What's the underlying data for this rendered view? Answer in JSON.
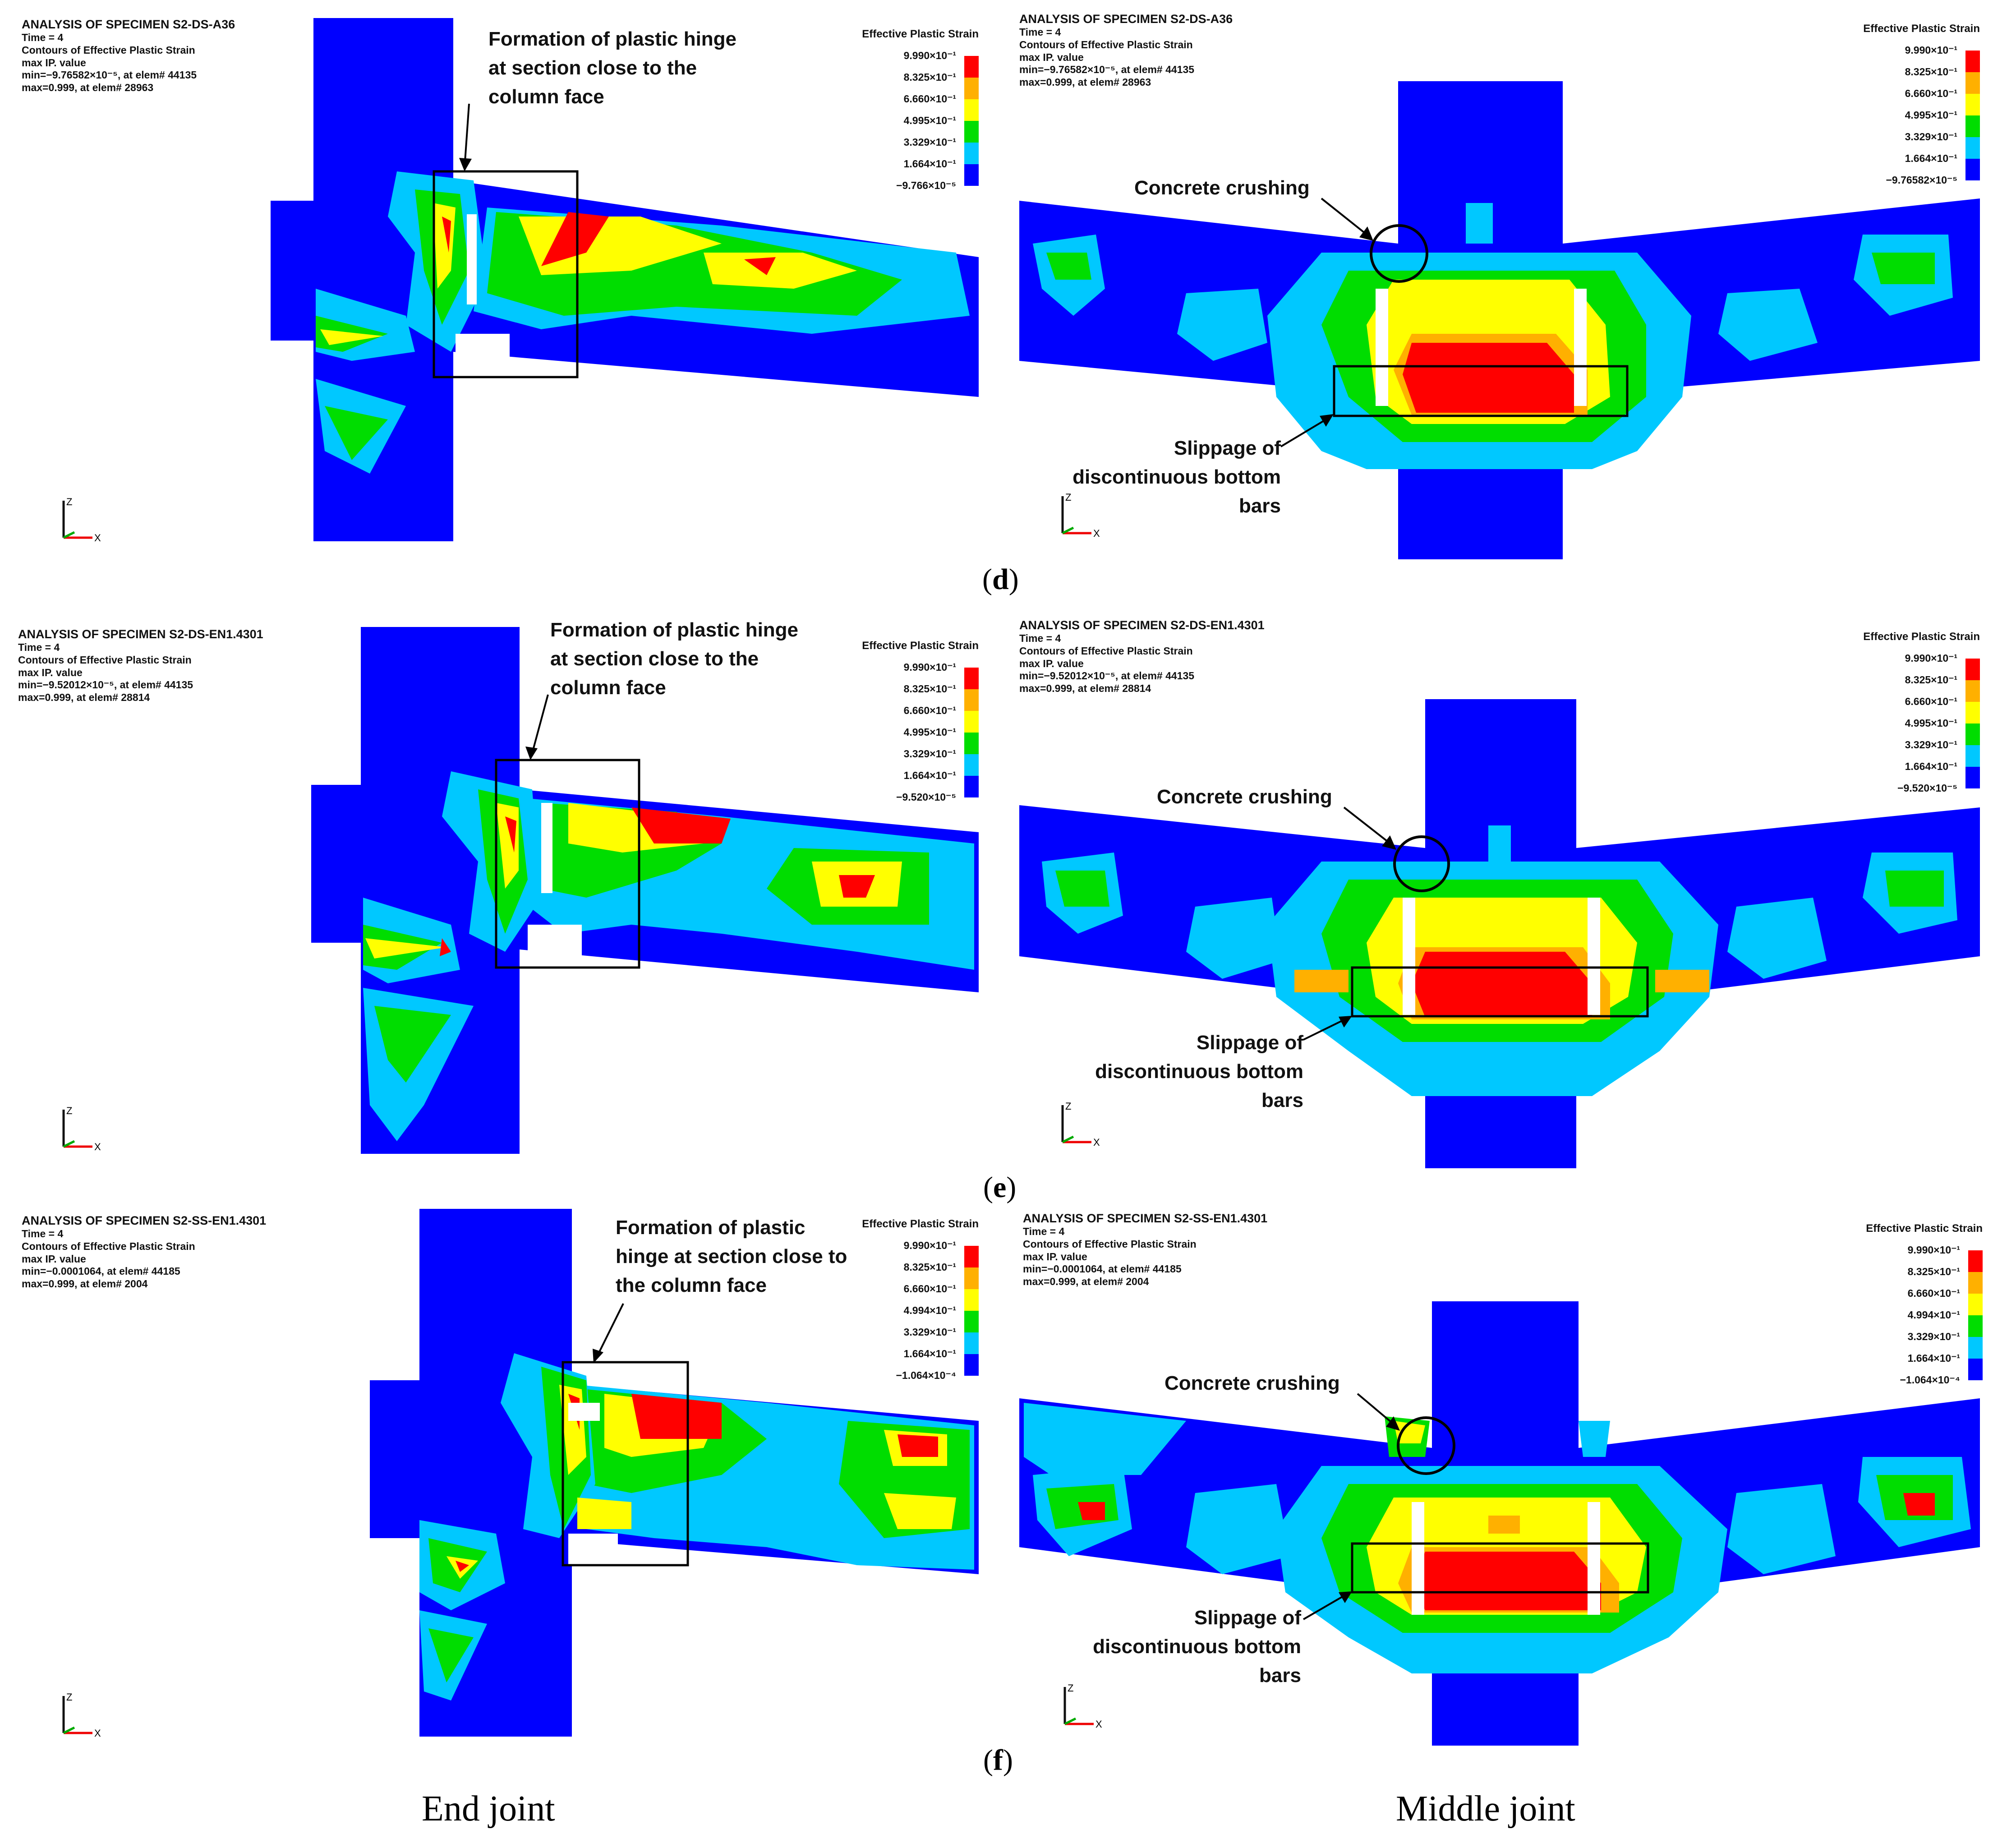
{
  "legend_colors": [
    "#ff0000",
    "#ffb000",
    "#ffff00",
    "#00dd00",
    "#00c8ff",
    "#0000ff"
  ],
  "panels": [
    {
      "id": "d-end",
      "header": {
        "title": "ANALYSIS OF SPECIMEN S2-DS-A36",
        "time": "Time =          4",
        "contours": "Contours of Effective Plastic Strain",
        "max_ip": "max IP. value",
        "min": "min=−9.76582×10⁻⁵, at elem# 44135",
        "max": "max=0.999, at elem# 28963"
      },
      "legend": {
        "title": "Effective Plastic Strain",
        "values": [
          "9.990×10⁻¹",
          "8.325×10⁻¹",
          "6.660×10⁻¹",
          "4.995×10⁻¹",
          "3.329×10⁻¹",
          "1.664×10⁻¹",
          "−9.766×10⁻⁵"
        ]
      },
      "annotations": [
        {
          "lines": [
            "Formation of plastic hinge",
            "at section close to the",
            "column face"
          ]
        }
      ],
      "axes": {
        "z": "Z",
        "x": "X"
      }
    },
    {
      "id": "d-middle",
      "header": {
        "title": "ANALYSIS OF SPECIMEN S2-DS-A36",
        "time": "Time =          4",
        "contours": "Contours of Effective Plastic Strain",
        "max_ip": "max IP. value",
        "min": "min=−9.76582×10⁻⁵, at elem# 44135",
        "max": "max=0.999, at elem# 28963"
      },
      "legend": {
        "title": "Effective Plastic Strain",
        "values": [
          "9.990×10⁻¹",
          "8.325×10⁻¹",
          "6.660×10⁻¹",
          "4.995×10⁻¹",
          "3.329×10⁻¹",
          "1.664×10⁻¹",
          "−9.76582×10⁻⁵"
        ]
      },
      "annotations": [
        {
          "lines": [
            "Concrete crushing"
          ]
        },
        {
          "lines": [
            "Slippage of",
            "discontinuous bottom",
            "bars"
          ]
        }
      ],
      "axes": {
        "z": "Z",
        "x": "X"
      }
    },
    {
      "id": "e-end",
      "header": {
        "title": "ANALYSIS OF SPECIMEN S2-DS-EN1.4301",
        "time": "Time =          4",
        "contours": "Contours of Effective Plastic Strain",
        "max_ip": "max IP. value",
        "min": "min=−9.52012×10⁻⁵, at elem# 44135",
        "max": "max=0.999, at elem# 28814"
      },
      "legend": {
        "title": "Effective Plastic Strain",
        "values": [
          "9.990×10⁻¹",
          "8.325×10⁻¹",
          "6.660×10⁻¹",
          "4.995×10⁻¹",
          "3.329×10⁻¹",
          "1.664×10⁻¹",
          "−9.520×10⁻⁵"
        ]
      },
      "annotations": [
        {
          "lines": [
            "Formation of plastic hinge",
            "at section close to the",
            "column face"
          ]
        }
      ],
      "axes": {
        "z": "Z",
        "x": "X"
      }
    },
    {
      "id": "e-middle",
      "header": {
        "title": "ANALYSIS OF SPECIMEN S2-DS-EN1.4301",
        "time": "Time =          4",
        "contours": "Contours of Effective Plastic Strain",
        "max_ip": "max IP. value",
        "min": "min=−9.52012×10⁻⁵, at elem# 44135",
        "max": "max=0.999, at elem# 28814"
      },
      "legend": {
        "title": "Effective Plastic Strain",
        "values": [
          "9.990×10⁻¹",
          "8.325×10⁻¹",
          "6.660×10⁻¹",
          "4.995×10⁻¹",
          "3.329×10⁻¹",
          "1.664×10⁻¹",
          "−9.520×10⁻⁵"
        ]
      },
      "annotations": [
        {
          "lines": [
            "Concrete crushing"
          ]
        },
        {
          "lines": [
            "Slippage of",
            "discontinuous bottom",
            "bars"
          ]
        }
      ],
      "axes": {
        "z": "Z",
        "x": "X"
      }
    },
    {
      "id": "f-end",
      "header": {
        "title": "ANALYSIS OF SPECIMEN S2-SS-EN1.4301",
        "time": "Time =          4",
        "contours": "Contours of Effective Plastic Strain",
        "max_ip": "max IP. value",
        "min": "min=−0.0001064, at elem# 44185",
        "max": "max=0.999, at elem# 2004"
      },
      "legend": {
        "title": "Effective Plastic Strain",
        "values": [
          "9.990×10⁻¹",
          "8.325×10⁻¹",
          "6.660×10⁻¹",
          "4.994×10⁻¹",
          "3.329×10⁻¹",
          "1.664×10⁻¹",
          "−1.064×10⁻⁴"
        ]
      },
      "annotations": [
        {
          "lines": [
            "Formation of plastic",
            "hinge at section close to",
            "the  column face"
          ]
        }
      ],
      "axes": {
        "z": "Z",
        "x": "X"
      }
    },
    {
      "id": "f-middle",
      "header": {
        "title": "ANALYSIS OF SPECIMEN S2-SS-EN1.4301",
        "time": "Time =          4",
        "contours": "Contours of Effective Plastic Strain",
        "max_ip": "max IP. value",
        "min": "min=−0.0001064, at elem# 44185",
        "max": "max=0.999, at elem# 2004"
      },
      "legend": {
        "title": "Effective Plastic Strain",
        "values": [
          "9.990×10⁻¹",
          "8.325×10⁻¹",
          "6.660×10⁻¹",
          "4.994×10⁻¹",
          "3.329×10⁻¹",
          "1.664×10⁻¹",
          "−1.064×10⁻⁴"
        ]
      },
      "annotations": [
        {
          "lines": [
            "Concrete crushing"
          ]
        },
        {
          "lines": [
            "Slippage of",
            "discontinuous bottom",
            "bars"
          ]
        }
      ],
      "axes": {
        "z": "Z",
        "x": "X"
      }
    }
  ],
  "captions": {
    "d": {
      "open": "(",
      "letter": "d",
      "close": ")"
    },
    "e": {
      "open": "(",
      "letter": "e",
      "close": ")"
    },
    "f": {
      "open": "(",
      "letter": "f",
      "close": ")"
    }
  },
  "bottom_labels": {
    "end": "End joint",
    "middle": "Middle joint"
  }
}
